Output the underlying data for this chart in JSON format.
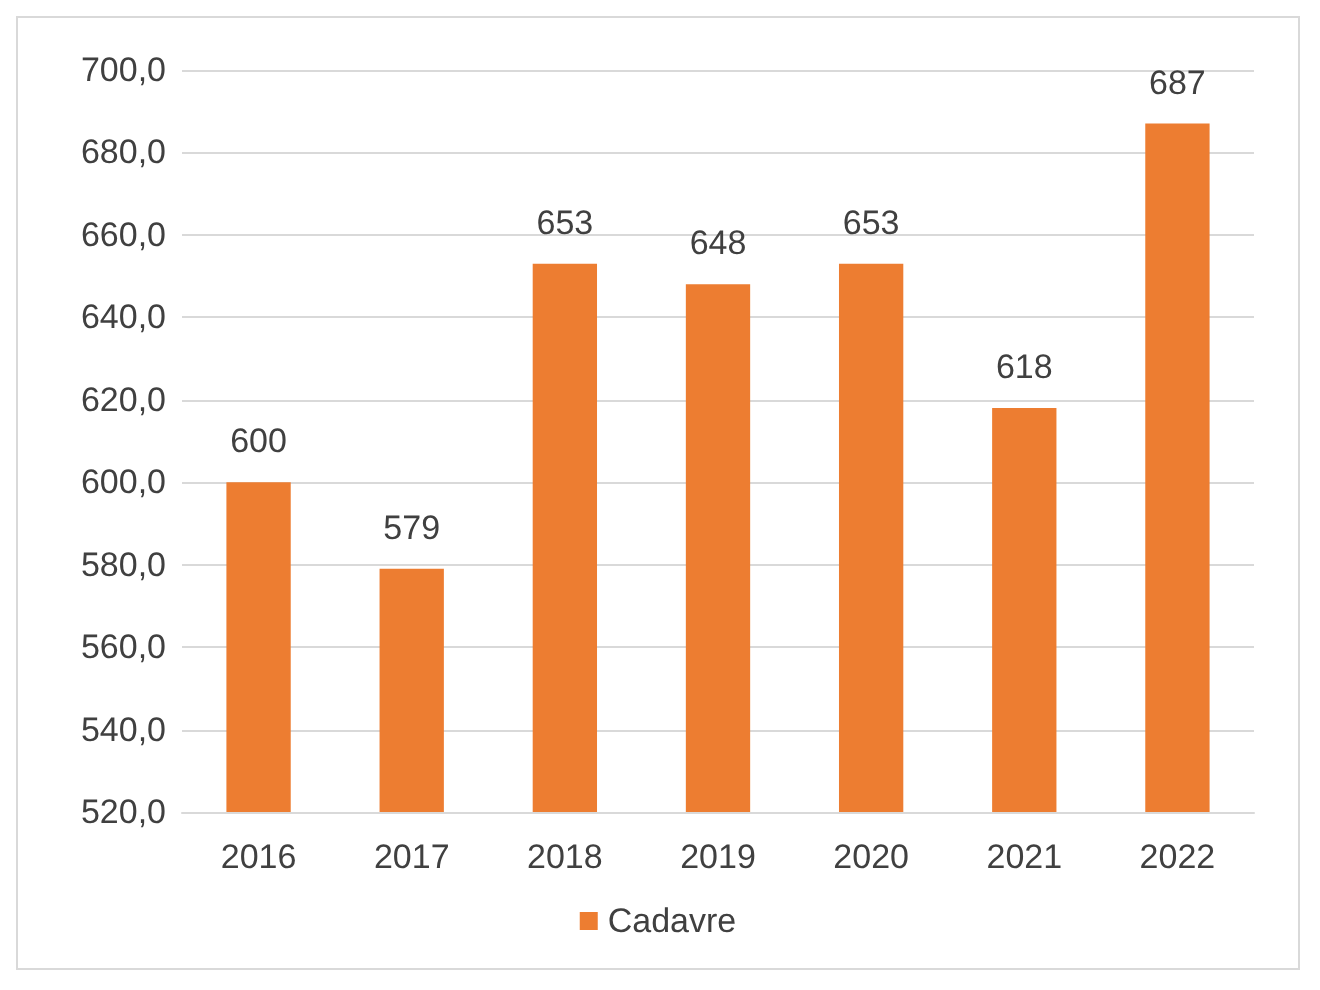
{
  "chart_data": {
    "type": "bar",
    "categories": [
      "2016",
      "2017",
      "2018",
      "2019",
      "2020",
      "2021",
      "2022"
    ],
    "series": [
      {
        "name": "Cadavre",
        "color": "#ed7d31",
        "values": [
          600,
          579,
          653,
          648,
          653,
          618,
          687
        ]
      }
    ],
    "ylim": [
      520,
      700
    ],
    "yticks": [
      {
        "value": 520,
        "label": "520,0"
      },
      {
        "value": 540,
        "label": "540,0"
      },
      {
        "value": 560,
        "label": "560,0"
      },
      {
        "value": 580,
        "label": "580,0"
      },
      {
        "value": 600,
        "label": "600,0"
      },
      {
        "value": 620,
        "label": "620,0"
      },
      {
        "value": 640,
        "label": "640,0"
      },
      {
        "value": 660,
        "label": "660,0"
      },
      {
        "value": 680,
        "label": "680,0"
      },
      {
        "value": 700,
        "label": "700,0"
      }
    ],
    "data_labels": true,
    "grid": "y",
    "legend": "bottom"
  }
}
